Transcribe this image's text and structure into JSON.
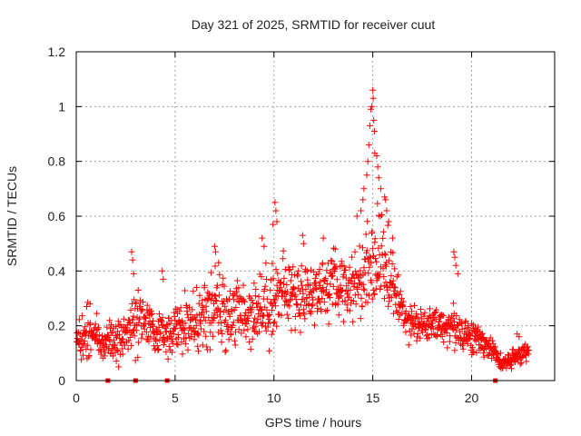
{
  "chart_data": {
    "type": "scatter",
    "title": "Day 321 of 2025, SRMTID for receiver cuut",
    "xlabel": "GPS time / hours",
    "ylabel": "SRMTID / TECUs",
    "xlim": [
      0,
      24.2
    ],
    "ylim": [
      0,
      1.2
    ],
    "x_ticks": [
      0,
      5,
      10,
      15,
      20
    ],
    "x_tick_labels": [
      "0",
      "5",
      "10",
      "15",
      "20"
    ],
    "y_ticks": [
      0,
      0.2,
      0.4,
      0.6,
      0.8,
      1.0,
      1.2
    ],
    "y_tick_labels": [
      "0",
      "0.2",
      "0.4",
      "0.6",
      "0.8",
      "1",
      "1.2"
    ],
    "grid": true,
    "marker": "plus",
    "series": [
      {
        "name": "SRMTID",
        "color": "#ff0000",
        "profile_x": [
          0,
          0.5,
          1,
          1.5,
          2,
          2.5,
          3,
          3.5,
          4,
          4.5,
          5,
          5.5,
          6,
          6.5,
          7,
          7.5,
          8,
          8.5,
          9,
          9.5,
          10,
          10.5,
          11,
          11.5,
          12,
          12.5,
          13,
          13.5,
          14,
          14.5,
          15,
          15.5,
          16,
          16.5,
          17,
          17.5,
          18,
          18.5,
          19,
          19.5,
          20,
          20.5,
          21,
          21.5,
          22,
          22.5,
          22.9
        ],
        "profile_y": [
          0.14,
          0.18,
          0.16,
          0.13,
          0.14,
          0.17,
          0.2,
          0.21,
          0.17,
          0.18,
          0.18,
          0.21,
          0.21,
          0.23,
          0.26,
          0.24,
          0.25,
          0.24,
          0.26,
          0.27,
          0.3,
          0.33,
          0.31,
          0.32,
          0.32,
          0.34,
          0.35,
          0.34,
          0.35,
          0.38,
          0.45,
          0.45,
          0.35,
          0.25,
          0.22,
          0.2,
          0.2,
          0.2,
          0.2,
          0.18,
          0.16,
          0.14,
          0.12,
          0.06,
          0.07,
          0.1,
          0.11
        ],
        "spread_y": [
          0.04,
          0.09,
          0.07,
          0.05,
          0.07,
          0.08,
          0.1,
          0.07,
          0.05,
          0.07,
          0.07,
          0.08,
          0.08,
          0.09,
          0.12,
          0.1,
          0.1,
          0.1,
          0.1,
          0.11,
          0.12,
          0.1,
          0.1,
          0.1,
          0.09,
          0.08,
          0.09,
          0.09,
          0.09,
          0.12,
          0.15,
          0.14,
          0.1,
          0.07,
          0.05,
          0.05,
          0.05,
          0.05,
          0.06,
          0.06,
          0.05,
          0.04,
          0.03,
          0.02,
          0.03,
          0.03,
          0.03
        ],
        "spikes": [
          {
            "x": 2.8,
            "y": 0.47
          },
          {
            "x": 2.85,
            "y": 0.44
          },
          {
            "x": 2.9,
            "y": 0.39
          },
          {
            "x": 4.35,
            "y": 0.4
          },
          {
            "x": 4.4,
            "y": 0.37
          },
          {
            "x": 7.0,
            "y": 0.49
          },
          {
            "x": 7.05,
            "y": 0.47
          },
          {
            "x": 7.2,
            "y": 0.43
          },
          {
            "x": 9.4,
            "y": 0.52
          },
          {
            "x": 9.5,
            "y": 0.49
          },
          {
            "x": 9.95,
            "y": 0.57
          },
          {
            "x": 10.05,
            "y": 0.65
          },
          {
            "x": 10.1,
            "y": 0.62
          },
          {
            "x": 10.15,
            "y": 0.58
          },
          {
            "x": 11.45,
            "y": 0.53
          },
          {
            "x": 11.5,
            "y": 0.5
          },
          {
            "x": 12.5,
            "y": 0.52
          },
          {
            "x": 13.1,
            "y": 0.48
          },
          {
            "x": 14.2,
            "y": 0.6
          },
          {
            "x": 14.4,
            "y": 0.62
          },
          {
            "x": 14.5,
            "y": 0.66
          },
          {
            "x": 14.55,
            "y": 0.7
          },
          {
            "x": 14.7,
            "y": 0.75
          },
          {
            "x": 14.75,
            "y": 0.8
          },
          {
            "x": 14.8,
            "y": 0.86
          },
          {
            "x": 14.85,
            "y": 0.93
          },
          {
            "x": 14.9,
            "y": 0.99
          },
          {
            "x": 14.95,
            "y": 1.0
          },
          {
            "x": 15.0,
            "y": 1.06
          },
          {
            "x": 15.02,
            "y": 1.03
          },
          {
            "x": 15.05,
            "y": 0.95
          },
          {
            "x": 15.08,
            "y": 0.91
          },
          {
            "x": 15.1,
            "y": 0.83
          },
          {
            "x": 15.2,
            "y": 0.82
          },
          {
            "x": 15.25,
            "y": 0.78
          },
          {
            "x": 15.3,
            "y": 0.74
          },
          {
            "x": 15.4,
            "y": 0.7
          },
          {
            "x": 15.6,
            "y": 0.67
          },
          {
            "x": 15.65,
            "y": 0.66
          },
          {
            "x": 15.7,
            "y": 0.62
          },
          {
            "x": 15.8,
            "y": 0.58
          },
          {
            "x": 16.0,
            "y": 0.52
          },
          {
            "x": 19.1,
            "y": 0.47
          },
          {
            "x": 19.15,
            "y": 0.45
          },
          {
            "x": 19.2,
            "y": 0.42
          },
          {
            "x": 19.3,
            "y": 0.39
          },
          {
            "x": 22.3,
            "y": 0.17
          },
          {
            "x": 22.4,
            "y": 0.16
          }
        ],
        "zero_points": [
          1.6,
          3.0,
          4.6,
          21.2
        ]
      }
    ]
  }
}
